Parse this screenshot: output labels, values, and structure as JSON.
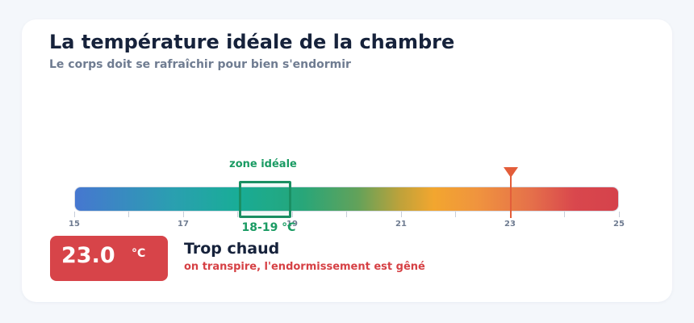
{
  "header": {
    "title": "La température idéale de la chambre",
    "subtitle": "Le corps doit se rafraîchir pour bien s'endormir"
  },
  "scale": {
    "min": 15,
    "max": 25,
    "ticks": [
      15,
      16,
      17,
      18,
      19,
      20,
      21,
      22,
      23,
      24,
      25
    ],
    "tick_labels": [
      "15",
      "17",
      "19",
      "21",
      "23",
      "25"
    ],
    "ideal_zone": {
      "label": "zone idéale",
      "range_label": "18-19 °C",
      "from": 18,
      "to": 19,
      "color": "#1b8f63"
    },
    "current_value": 23,
    "marker_color": "#e35d3a"
  },
  "reading": {
    "value": "23.0",
    "unit": "°C",
    "status": "Trop chaud",
    "description": "on transpire, l'endormissement est gêné",
    "color": "#d74449"
  }
}
